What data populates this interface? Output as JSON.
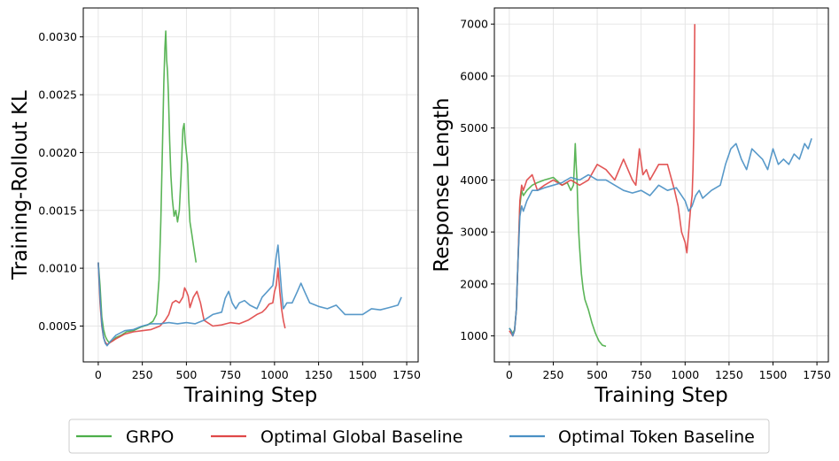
{
  "chart_data": [
    {
      "type": "line",
      "title": "",
      "xlabel": "Training Step",
      "ylabel": "Training-Rollout KL",
      "xlim": [
        -85,
        1815
      ],
      "ylim": [
        0.00019,
        0.00325
      ],
      "xticks": [
        0,
        250,
        500,
        750,
        1000,
        1250,
        1500,
        1750
      ],
      "xtick_labels": [
        "0",
        "250",
        "500",
        "750",
        "1000",
        "1250",
        "1500",
        "1750"
      ],
      "yticks": [
        0.0005,
        0.001,
        0.0015,
        0.002,
        0.0025,
        0.003
      ],
      "ytick_labels": [
        "0.0005",
        "0.0010",
        "0.0015",
        "0.0020",
        "0.0025",
        "0.0030"
      ],
      "grid": true,
      "series": [
        {
          "name": "GRPO",
          "color": "#4daf4a",
          "x": [
            0,
            10,
            20,
            30,
            40,
            50,
            60,
            80,
            100,
            130,
            160,
            200,
            240,
            280,
            310,
            330,
            345,
            355,
            365,
            372,
            378,
            383,
            388,
            393,
            398,
            405,
            412,
            420,
            430,
            440,
            450,
            460,
            470,
            480,
            487,
            493,
            500,
            507,
            513,
            520,
            530,
            540,
            550,
            555
          ],
          "y": [
            0.00105,
            0.00085,
            0.00058,
            0.00047,
            0.00041,
            0.00038,
            0.00036,
            0.00037,
            0.0004,
            0.00042,
            0.00045,
            0.00046,
            0.00049,
            0.00051,
            0.00054,
            0.0006,
            0.0009,
            0.0014,
            0.0021,
            0.0026,
            0.0029,
            0.00305,
            0.0028,
            0.0027,
            0.0025,
            0.0021,
            0.0018,
            0.0016,
            0.00145,
            0.0015,
            0.0014,
            0.0015,
            0.0018,
            0.0022,
            0.00225,
            0.0021,
            0.002,
            0.0019,
            0.0016,
            0.0014,
            0.0013,
            0.0012,
            0.0011,
            0.00105
          ]
        },
        {
          "name": "Optimal Global Baseline",
          "color": "#e04848",
          "x": [
            0,
            10,
            20,
            30,
            40,
            50,
            70,
            100,
            150,
            200,
            250,
            300,
            350,
            380,
            400,
            420,
            440,
            460,
            480,
            490,
            500,
            510,
            520,
            540,
            560,
            580,
            600,
            650,
            700,
            750,
            800,
            850,
            900,
            930,
            950,
            970,
            990,
            1000,
            1010,
            1020,
            1030,
            1040,
            1050,
            1060
          ],
          "y": [
            0.00105,
            0.0007,
            0.0005,
            0.0004,
            0.00036,
            0.00034,
            0.00036,
            0.00039,
            0.00043,
            0.00045,
            0.00046,
            0.00047,
            0.0005,
            0.00055,
            0.0006,
            0.0007,
            0.00072,
            0.0007,
            0.00075,
            0.00083,
            0.0008,
            0.00076,
            0.00066,
            0.00075,
            0.0008,
            0.0007,
            0.00055,
            0.0005,
            0.00051,
            0.00053,
            0.00052,
            0.00055,
            0.0006,
            0.00062,
            0.00065,
            0.00069,
            0.0007,
            0.0008,
            0.00085,
            0.001,
            0.0008,
            0.00065,
            0.00055,
            0.00048
          ]
        },
        {
          "name": "Optimal Token Baseline",
          "color": "#4a90c4",
          "x": [
            0,
            10,
            20,
            30,
            40,
            50,
            70,
            100,
            150,
            200,
            250,
            300,
            350,
            400,
            450,
            500,
            550,
            600,
            650,
            700,
            720,
            740,
            760,
            780,
            800,
            830,
            860,
            900,
            930,
            960,
            990,
            1010,
            1020,
            1030,
            1040,
            1050,
            1070,
            1100,
            1130,
            1150,
            1170,
            1200,
            1250,
            1300,
            1350,
            1400,
            1450,
            1500,
            1550,
            1600,
            1650,
            1700,
            1720
          ],
          "y": [
            0.00105,
            0.00075,
            0.00052,
            0.0004,
            0.00035,
            0.00033,
            0.00037,
            0.00042,
            0.00046,
            0.00047,
            0.0005,
            0.00052,
            0.00052,
            0.00053,
            0.00052,
            0.00053,
            0.00052,
            0.00055,
            0.0006,
            0.00062,
            0.00074,
            0.0008,
            0.0007,
            0.00065,
            0.0007,
            0.00072,
            0.00068,
            0.00065,
            0.00075,
            0.0008,
            0.00085,
            0.0011,
            0.0012,
            0.001,
            0.0008,
            0.00065,
            0.0007,
            0.0007,
            0.0008,
            0.00087,
            0.0008,
            0.0007,
            0.00067,
            0.00065,
            0.00068,
            0.0006,
            0.0006,
            0.0006,
            0.00065,
            0.00064,
            0.00066,
            0.00068,
            0.00075
          ]
        }
      ]
    },
    {
      "type": "line",
      "title": "",
      "xlabel": "Training Step",
      "ylabel": "Response Length",
      "xlim": [
        -85,
        1815
      ],
      "ylim": [
        500,
        7310
      ],
      "xticks": [
        0,
        250,
        500,
        750,
        1000,
        1250,
        1500,
        1750
      ],
      "xtick_labels": [
        "0",
        "250",
        "500",
        "750",
        "1000",
        "1250",
        "1500",
        "1750"
      ],
      "yticks": [
        1000,
        2000,
        3000,
        4000,
        5000,
        6000,
        7000
      ],
      "ytick_labels": [
        "1000",
        "2000",
        "3000",
        "4000",
        "5000",
        "6000",
        "7000"
      ],
      "grid": true,
      "series": [
        {
          "name": "GRPO",
          "color": "#4daf4a",
          "x": [
            0,
            10,
            20,
            30,
            40,
            50,
            60,
            70,
            80,
            100,
            130,
            160,
            200,
            250,
            300,
            330,
            350,
            365,
            375,
            380,
            385,
            390,
            395,
            400,
            410,
            420,
            430,
            450,
            470,
            490,
            510,
            530,
            550
          ],
          "y": [
            1150,
            1100,
            1050,
            1120,
            1500,
            2500,
            3500,
            3800,
            3700,
            3800,
            3900,
            3950,
            4000,
            4050,
            3900,
            3950,
            3800,
            3900,
            4700,
            4300,
            4000,
            3400,
            3000,
            2700,
            2200,
            1900,
            1700,
            1500,
            1250,
            1050,
            900,
            820,
            800
          ]
        },
        {
          "name": "Optimal Global Baseline",
          "color": "#e04848",
          "x": [
            0,
            10,
            20,
            30,
            40,
            50,
            60,
            70,
            80,
            100,
            130,
            160,
            200,
            250,
            300,
            350,
            400,
            450,
            500,
            550,
            600,
            650,
            700,
            720,
            740,
            760,
            780,
            800,
            850,
            900,
            940,
            960,
            980,
            1000,
            1010,
            1020,
            1030,
            1040,
            1045,
            1050,
            1055
          ],
          "y": [
            1100,
            1050,
            1000,
            1100,
            1500,
            2500,
            3600,
            3900,
            3800,
            4000,
            4100,
            3800,
            3900,
            4000,
            3900,
            4000,
            3900,
            4000,
            4300,
            4200,
            4000,
            4400,
            4000,
            3900,
            4600,
            4100,
            4200,
            4000,
            4300,
            4300,
            3800,
            3500,
            3000,
            2800,
            2600,
            3000,
            3400,
            3700,
            4200,
            5000,
            7000
          ]
        },
        {
          "name": "Optimal Token Baseline",
          "color": "#4a90c4",
          "x": [
            0,
            10,
            20,
            30,
            40,
            50,
            60,
            70,
            80,
            100,
            130,
            160,
            200,
            250,
            300,
            350,
            400,
            450,
            500,
            550,
            600,
            650,
            700,
            750,
            800,
            850,
            900,
            950,
            1000,
            1020,
            1040,
            1060,
            1080,
            1100,
            1150,
            1200,
            1230,
            1260,
            1290,
            1320,
            1350,
            1380,
            1410,
            1440,
            1470,
            1500,
            1530,
            1560,
            1590,
            1620,
            1650,
            1680,
            1700,
            1720
          ],
          "y": [
            1150,
            1100,
            1000,
            1100,
            1500,
            2500,
            3300,
            3500,
            3400,
            3600,
            3800,
            3800,
            3850,
            3900,
            3950,
            4050,
            4000,
            4100,
            4000,
            4000,
            3900,
            3800,
            3750,
            3800,
            3700,
            3900,
            3800,
            3850,
            3600,
            3400,
            3500,
            3700,
            3800,
            3650,
            3800,
            3900,
            4300,
            4600,
            4700,
            4400,
            4200,
            4600,
            4500,
            4400,
            4200,
            4600,
            4300,
            4400,
            4300,
            4500,
            4400,
            4700,
            4600,
            4800
          ]
        }
      ]
    }
  ],
  "legend": {
    "placement": "bottom-center",
    "entries": [
      {
        "label": "GRPO",
        "color": "#4daf4a"
      },
      {
        "label": "Optimal Global Baseline",
        "color": "#e04848"
      },
      {
        "label": "Optimal Token Baseline",
        "color": "#4a90c4"
      }
    ]
  }
}
